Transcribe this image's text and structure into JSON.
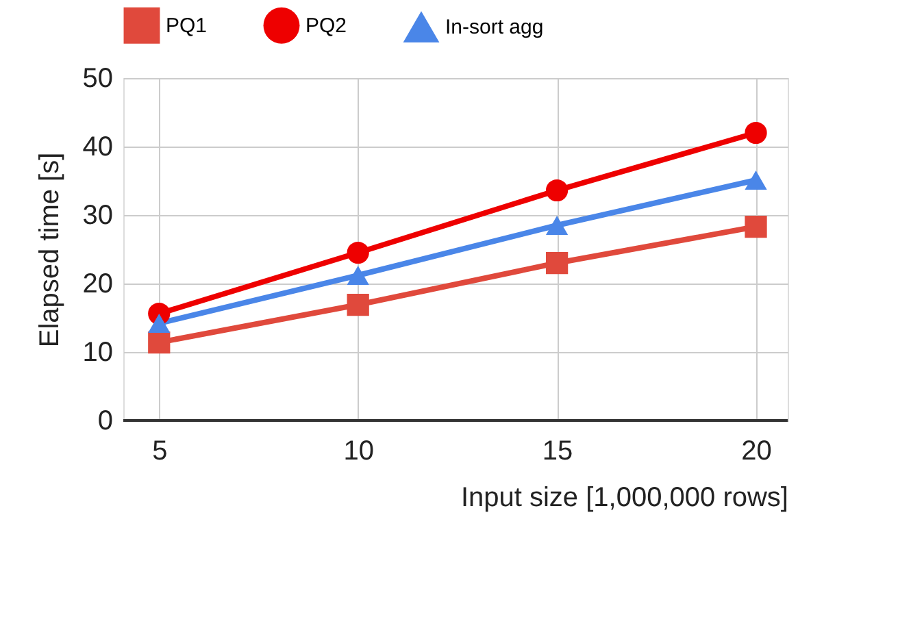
{
  "chart_data": {
    "type": "line",
    "xlabel": "Input size [1,000,000 rows]",
    "ylabel": "Elapsed time [s]",
    "x": [
      5,
      10,
      15,
      20
    ],
    "xlim": [
      4.1,
      20.8
    ],
    "xticks": [
      5,
      10,
      15,
      20
    ],
    "ylim": [
      0,
      50
    ],
    "yticks": [
      0,
      10,
      20,
      30,
      40,
      50
    ],
    "grid": true,
    "legend": "top",
    "series": [
      {
        "name": "PQ1",
        "color": "#e0493c",
        "marker": "square",
        "values": [
          11.4,
          16.9,
          23,
          28.3
        ]
      },
      {
        "name": "PQ2",
        "color": "#ee0000",
        "marker": "circle",
        "values": [
          15.6,
          24.5,
          33.6,
          42
        ]
      },
      {
        "name": "In-sort agg",
        "color": "#4a86e8",
        "marker": "triangle",
        "values": [
          14.2,
          21.2,
          28.5,
          35.1
        ]
      }
    ]
  }
}
